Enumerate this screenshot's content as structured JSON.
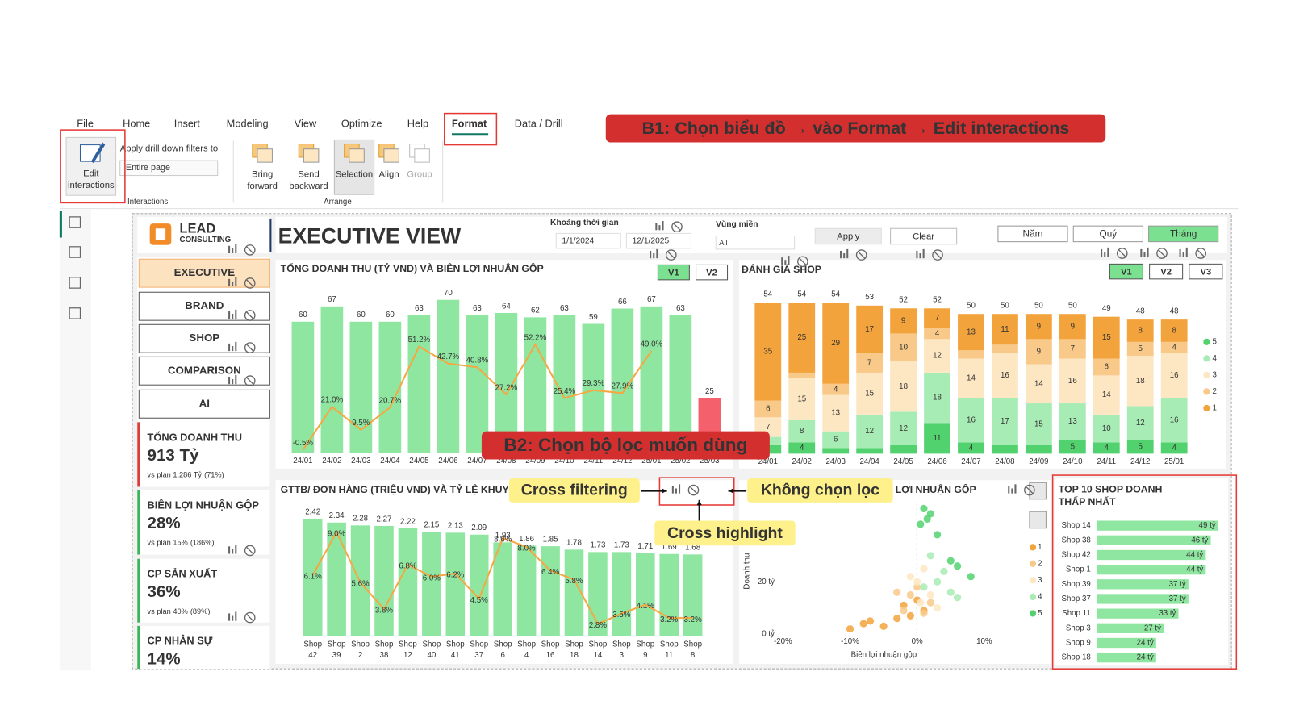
{
  "ribbon": {
    "tabs": [
      "File",
      "Home",
      "Insert",
      "Modeling",
      "View",
      "Optimize",
      "Help",
      "Format",
      "Data / Drill"
    ],
    "edit_interactions": "Edit interactions",
    "drill_label": "Apply drill down filters to",
    "drill_value": "Entire page",
    "interactions_group": "Interactions",
    "arrange": [
      "Bring forward",
      "Send backward",
      "Selection",
      "Align",
      "Group"
    ],
    "arrange_group": "Arrange"
  },
  "annotations": {
    "step1": "B1: Chọn biểu đồ → vào Format → Edit interactions",
    "step2": "B2: Chọn bộ lọc muốn dùng",
    "cross_filtering": "Cross filtering",
    "cross_highlight": "Cross highlight",
    "no_filter": "Không chọn lọc"
  },
  "report": {
    "logo": "LEAD",
    "logo_sub": "CONSULTING",
    "title": "EXECUTIVE VIEW",
    "period_label": "Khoảng thời gian",
    "date_from": "1/1/2024",
    "date_to": "12/1/2025",
    "region_label": "Vùng miền",
    "region_value": "All",
    "apply": "Apply",
    "clear": "Clear",
    "granularity": [
      "Năm",
      "Quý",
      "Tháng"
    ],
    "nav": [
      "EXECUTIVE",
      "BRAND",
      "SHOP",
      "COMPARISON",
      "AI"
    ],
    "kpis": [
      {
        "label": "TỔNG DOANH THU",
        "value": "913 Tỷ",
        "plan": "vs plan 1,286 Tỷ",
        "ratio": "(71%)"
      },
      {
        "label": "BIÊN LỢI NHUẬN GỘP",
        "value": "28%",
        "plan": "vs plan 15%",
        "ratio": "(186%)"
      },
      {
        "label": "CP SẢN XUẤT",
        "value": "36%",
        "plan": "vs plan 40%",
        "ratio": "(89%)"
      },
      {
        "label": "CP NHÂN SỰ",
        "value": "14%"
      }
    ]
  },
  "chart_data": [
    {
      "type": "bar_line",
      "title": "TỔNG DOANH THU (TỶ VND) VÀ BIÊN LỢI NHUẬN GỘP",
      "buttons": [
        "V1",
        "V2"
      ],
      "categories": [
        "24/01",
        "24/02",
        "24/03",
        "24/04",
        "24/05",
        "24/06",
        "24/07",
        "24/08",
        "24/09",
        "24/10",
        "24/11",
        "24/12",
        "25/01",
        "25/02",
        "25/03"
      ],
      "ylim": [
        0,
        75
      ],
      "y2lim": [
        -2,
        80
      ],
      "series": [
        {
          "color": "#8fe6a1",
          "colors": [
            "#8fe6a1",
            "#8fe6a1",
            "#8fe6a1",
            "#8fe6a1",
            "#8fe6a1",
            "#8fe6a1",
            "#8fe6a1",
            "#8fe6a1",
            "#8fe6a1",
            "#8fe6a1",
            "#8fe6a1",
            "#8fe6a1",
            "#8fe6a1",
            "#8fe6a1",
            "#f4606c"
          ],
          "values": [
            60,
            67,
            60,
            60,
            63,
            70,
            63,
            64,
            62,
            63,
            59,
            66,
            67,
            63,
            25
          ]
        },
        {
          "axis": "y2",
          "color": "#f5a742",
          "values": [
            -0.5,
            21.0,
            9.5,
            20.7,
            51.2,
            42.7,
            40.8,
            27.2,
            52.2,
            25.4,
            29.3,
            27.9,
            49.0,
            null,
            null
          ],
          "value_labels": [
            "-0.5%",
            "21.0%",
            "9.5%",
            "20.7%",
            "51.2%",
            "42.7%",
            "40.8%",
            "27.2%",
            "52.2%",
            "25.4%",
            "29.3%",
            "27.9%",
            "49.0%",
            null,
            null
          ]
        }
      ]
    },
    {
      "type": "stacked_bar",
      "title": "ĐÁNH GIÁ SHOP",
      "buttons": [
        "V1",
        "V2",
        "V3"
      ],
      "categories": [
        "24/01",
        "24/02",
        "24/03",
        "24/04",
        "24/05",
        "24/06",
        "24/07",
        "24/08",
        "24/09",
        "24/10",
        "24/11",
        "24/12",
        "25/01"
      ],
      "ylim": [
        0,
        56
      ],
      "totals": [
        54,
        54,
        54,
        53,
        52,
        52,
        50,
        50,
        50,
        50,
        49,
        48,
        48
      ],
      "series": [
        {
          "name": "5",
          "color": "#52d26e",
          "values": [
            3,
            4,
            2,
            2,
            3,
            11,
            4,
            3,
            3,
            5,
            4,
            5,
            4
          ]
        },
        {
          "name": "4",
          "color": "#a8ecb5",
          "values": [
            3,
            8,
            6,
            12,
            12,
            18,
            16,
            17,
            15,
            13,
            10,
            12,
            16
          ]
        },
        {
          "name": "3",
          "color": "#fde7c3",
          "values": [
            7,
            15,
            13,
            15,
            18,
            12,
            14,
            16,
            14,
            16,
            14,
            18,
            16
          ]
        },
        {
          "name": "2",
          "color": "#f9c98a",
          "values": [
            6,
            2,
            4,
            7,
            10,
            4,
            3,
            3,
            9,
            7,
            6,
            5,
            4
          ]
        },
        {
          "name": "1",
          "color": "#f3a33c",
          "values": [
            35,
            25,
            29,
            17,
            9,
            7,
            13,
            11,
            9,
            9,
            15,
            8,
            8
          ]
        }
      ]
    },
    {
      "type": "bar_line",
      "title": "GTTB/ ĐƠN HÀNG (TRIỆU VND) VÀ TỶ LỆ KHUY",
      "categories": [
        "Shop 42",
        "Shop 39",
        "Shop 2",
        "Shop 38",
        "Shop 12",
        "Shop 40",
        "Shop 41",
        "Shop 37",
        "Shop 6",
        "Shop 4",
        "Shop 16",
        "Shop 18",
        "Shop 14",
        "Shop 3",
        "Shop 9",
        "Shop 11",
        "Shop 8"
      ],
      "ylim": [
        0,
        2.6
      ],
      "y2lim": [
        2,
        10.5
      ],
      "series": [
        {
          "color": "#8fe6a1",
          "values": [
            2.42,
            2.34,
            2.28,
            2.27,
            2.22,
            2.15,
            2.13,
            2.09,
            1.93,
            1.86,
            1.85,
            1.78,
            1.73,
            1.73,
            1.71,
            1.69,
            1.68
          ]
        },
        {
          "axis": "y2",
          "color": "#f5a742",
          "values": [
            6.1,
            9.0,
            5.6,
            3.8,
            6.8,
            6.0,
            6.2,
            4.5,
            8.6,
            8.0,
            6.4,
            5.8,
            2.8,
            3.5,
            4.1,
            3.2,
            3.2
          ],
          "value_labels": [
            "6.1%",
            "9.0%",
            "5.6%",
            "3.8%",
            "6.8%",
            "6.0%",
            "6.2%",
            "4.5%",
            "8.6%",
            "8.0%",
            "6.4%",
            "5.8%",
            "2.8%",
            "3.5%",
            "4.1%",
            "3.2%",
            "3.2%"
          ]
        }
      ]
    },
    {
      "type": "scatter",
      "title": "LỢI NHUẬN GỘP",
      "xlabel": "Biên lợi nhuận gộp",
      "ylabel": "Doanh thu",
      "xlim": [
        -21,
        16
      ],
      "ylim": [
        0,
        50
      ],
      "xticks": [
        {
          "value": -20,
          "label": "-20%"
        },
        {
          "value": -10,
          "label": "-10%"
        },
        {
          "value": 0,
          "label": "0%"
        },
        {
          "value": 10,
          "label": "10%"
        }
      ],
      "yticks": [
        {
          "value": 0,
          "label": "0 tỷ"
        },
        {
          "value": 20,
          "label": "20 tỷ"
        }
      ],
      "series": [
        {
          "name": "1",
          "color": "#f3a33c",
          "x": [
            -10,
            -8,
            -7,
            -5,
            -3,
            -2,
            -1,
            0,
            1
          ],
          "values": [
            2,
            4,
            5,
            3,
            6,
            11,
            7,
            13,
            9
          ]
        },
        {
          "name": "2",
          "color": "#f9c98a",
          "x": [
            -3,
            -2,
            -1,
            0,
            1,
            2
          ],
          "values": [
            16,
            9,
            15,
            18,
            8,
            12
          ]
        },
        {
          "name": "3",
          "color": "#fde7c3",
          "x": [
            -1,
            0,
            0.5,
            1,
            2,
            3
          ],
          "values": [
            22,
            20,
            12,
            25,
            15,
            10
          ]
        },
        {
          "name": "4",
          "color": "#a8ecb5",
          "x": [
            1,
            2,
            3,
            4,
            5,
            6
          ],
          "values": [
            18,
            30,
            20,
            24,
            16,
            14
          ]
        },
        {
          "name": "5",
          "color": "#52d26e",
          "x": [
            0.5,
            1,
            1.5,
            2,
            3,
            5,
            6,
            8
          ],
          "values": [
            42,
            48,
            44,
            46,
            38,
            28,
            26,
            22
          ]
        }
      ]
    },
    {
      "type": "hbar",
      "title": "TOP 10 SHOP DOANH THẤP NHẤT",
      "categories": [
        "Shop 14",
        "Shop 38",
        "Shop 42",
        "Shop 1",
        "Shop 39",
        "Shop 37",
        "Shop 11",
        "Shop 3",
        "Shop 9",
        "Shop 18"
      ],
      "values": [
        49,
        46,
        44,
        44,
        37,
        37,
        33,
        27,
        24,
        24
      ],
      "value_labels": [
        "49 tỷ",
        "46 tỷ",
        "44 tỷ",
        "44 tỷ",
        "37 tỷ",
        "37 tỷ",
        "33 tỷ",
        "27 tỷ",
        "24 tỷ",
        "24 tỷ"
      ],
      "xlim": [
        0,
        50
      ],
      "color": "#8fe6a1"
    }
  ]
}
